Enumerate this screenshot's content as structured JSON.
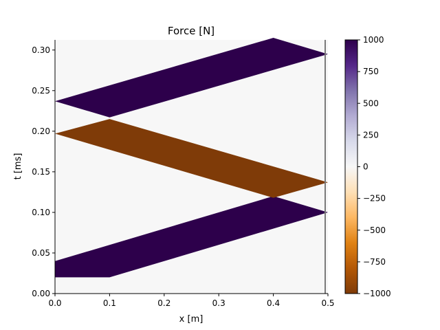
{
  "chart_data": {
    "type": "heatmap",
    "title": "Force [N]",
    "xlabel": "x [m]",
    "ylabel": "t [ms]",
    "xlim": [
      0.0,
      0.5
    ],
    "ylim": [
      0.0,
      0.3125
    ],
    "x_ticks": [
      0.0,
      0.1,
      0.2,
      0.3,
      0.4,
      0.5
    ],
    "x_tick_labels": [
      "0.0",
      "0.1",
      "0.2",
      "0.3",
      "0.4",
      "0.5"
    ],
    "y_ticks": [
      0.0,
      0.05,
      0.1,
      0.15,
      0.2,
      0.25,
      0.3
    ],
    "y_tick_labels": [
      "0.00",
      "0.05",
      "0.10",
      "0.15",
      "0.20",
      "0.25",
      "0.30"
    ],
    "colorbar": {
      "min": -1000,
      "max": 1000,
      "ticks": [
        1000,
        750,
        500,
        250,
        0,
        -250,
        -500,
        -750,
        -1000
      ],
      "tick_labels": [
        "1000",
        "750",
        "500",
        "250",
        "0",
        "−250",
        "−500",
        "−750",
        "−1000"
      ],
      "colormap": "PuOr",
      "colors": [
        "#7f3b08",
        "#b35806",
        "#e08214",
        "#fdb863",
        "#fee0b6",
        "#f7f7f7",
        "#d8daeb",
        "#b2abd2",
        "#8073ac",
        "#542788",
        "#2d004b"
      ]
    },
    "background_value": 0,
    "bands": [
      {
        "value": 1000,
        "polygon": [
          [
            0.0,
            0.0
          ],
          [
            0.0,
            0.04
          ],
          [
            0.4,
            0.12
          ],
          [
            0.5,
            0.1
          ],
          [
            0.1,
            0.02
          ],
          [
            0.0,
            0.02
          ]
        ]
      },
      {
        "value": -1000,
        "polygon": [
          [
            0.0,
            0.197
          ],
          [
            0.1,
            0.215
          ],
          [
            0.5,
            0.137
          ],
          [
            0.4,
            0.118
          ],
          [
            0.0,
            0.197
          ]
        ]
      },
      {
        "value": 1000,
        "polygon": [
          [
            0.0,
            0.237
          ],
          [
            0.4,
            0.315
          ],
          [
            0.5,
            0.295
          ],
          [
            0.1,
            0.217
          ],
          [
            0.0,
            0.237
          ]
        ]
      }
    ],
    "boundary_line": {
      "x": 0.5,
      "color": "#7a7a7a"
    }
  }
}
